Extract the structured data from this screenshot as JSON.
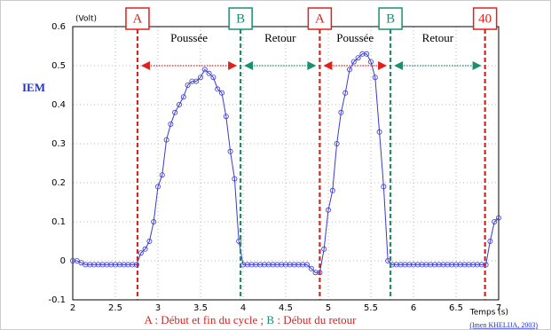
{
  "chart_data": {
    "type": "line",
    "side_label": "IEM",
    "y_unit": "(Volt)",
    "x_label": "Temps (s)",
    "caption": [
      "A",
      " : Début et fin du cycle ; ",
      "B",
      " : Début du retour"
    ],
    "source": "(Imen KHELIJA, 2003)",
    "xlim": [
      2,
      7
    ],
    "xticks": [
      2,
      2.5,
      3,
      3.5,
      4,
      4.5,
      5,
      5.5,
      6,
      6.5,
      7
    ],
    "ylim": [
      -0.1,
      0.6
    ],
    "yticks": [
      -0.1,
      0,
      0.1,
      0.2,
      0.3,
      0.4,
      0.5,
      0.6
    ],
    "grid": true,
    "markers": [
      {
        "label": "A",
        "x": 2.76,
        "color": "#e0201c"
      },
      {
        "label": "B",
        "x": 3.97,
        "color": "#1a8f70"
      },
      {
        "label": "A",
        "x": 4.9,
        "color": "#e0201c"
      },
      {
        "label": "B",
        "x": 5.73,
        "color": "#1a8f70"
      },
      {
        "label": "40",
        "x": 6.84,
        "color": "#e0201c"
      }
    ],
    "phases": [
      "Poussée",
      "Retour",
      "Poussée",
      "Retour"
    ],
    "x": [
      2,
      2.05,
      2.1,
      2.15,
      2.2,
      2.25,
      2.3,
      2.35,
      2.4,
      2.45,
      2.5,
      2.55,
      2.6,
      2.65,
      2.7,
      2.75,
      2.8,
      2.85,
      2.9,
      2.95,
      3,
      3.05,
      3.1,
      3.15,
      3.2,
      3.25,
      3.3,
      3.35,
      3.4,
      3.45,
      3.5,
      3.55,
      3.6,
      3.65,
      3.7,
      3.75,
      3.8,
      3.85,
      3.9,
      3.95,
      4,
      4.05,
      4.1,
      4.15,
      4.2,
      4.25,
      4.3,
      4.35,
      4.4,
      4.45,
      4.5,
      4.55,
      4.6,
      4.65,
      4.7,
      4.75,
      4.8,
      4.85,
      4.9,
      4.95,
      5,
      5.05,
      5.1,
      5.15,
      5.2,
      5.25,
      5.3,
      5.35,
      5.4,
      5.45,
      5.5,
      5.55,
      5.6,
      5.65,
      5.7,
      5.75,
      5.8,
      5.85,
      5.9,
      5.95,
      6,
      6.05,
      6.1,
      6.15,
      6.2,
      6.25,
      6.3,
      6.35,
      6.4,
      6.45,
      6.5,
      6.55,
      6.6,
      6.65,
      6.7,
      6.75,
      6.8,
      6.85,
      6.9,
      6.95,
      7
    ],
    "series": [
      {
        "color": "#3a3ad0",
        "values": [
          0,
          0,
          -0.005,
          -0.01,
          -0.01,
          -0.01,
          -0.01,
          -0.01,
          -0.01,
          -0.01,
          -0.01,
          -0.01,
          -0.01,
          -0.01,
          -0.01,
          -0.01,
          0.02,
          0.03,
          0.05,
          0.1,
          0.19,
          0.22,
          0.31,
          0.35,
          0.38,
          0.4,
          0.42,
          0.45,
          0.46,
          0.46,
          0.47,
          0.49,
          0.48,
          0.47,
          0.44,
          0.43,
          0.37,
          0.28,
          0.21,
          0.05,
          -0.01,
          -0.01,
          -0.01,
          -0.01,
          -0.01,
          -0.01,
          -0.01,
          -0.01,
          -0.01,
          -0.01,
          -0.01,
          -0.01,
          -0.01,
          -0.01,
          -0.01,
          -0.01,
          -0.02,
          -0.03,
          -0.03,
          0.03,
          0.13,
          0.18,
          0.3,
          0.38,
          0.43,
          0.49,
          0.51,
          0.52,
          0.53,
          0.53,
          0.51,
          0.47,
          0.33,
          0.19,
          0,
          -0.01,
          -0.01,
          -0.01,
          -0.01,
          -0.01,
          -0.01,
          -0.01,
          -0.01,
          -0.01,
          -0.01,
          -0.01,
          -0.01,
          -0.01,
          -0.01,
          -0.01,
          -0.01,
          -0.01,
          -0.01,
          -0.01,
          -0.01,
          -0.01,
          -0.01,
          -0.01,
          0.05,
          0.1,
          0.11
        ]
      }
    ]
  }
}
